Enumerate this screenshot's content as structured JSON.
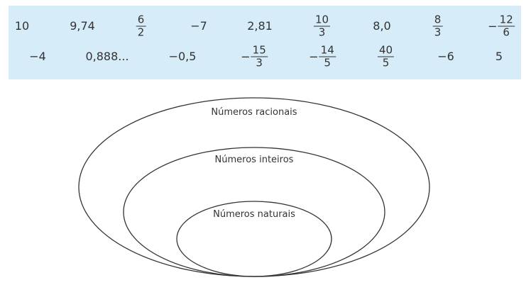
{
  "numbers": {
    "row1": [
      {
        "type": "plain",
        "text": "10"
      },
      {
        "type": "plain",
        "text": "9,74"
      },
      {
        "type": "frac",
        "sign": "",
        "num": "6",
        "den": "2"
      },
      {
        "type": "plain",
        "text": "−7"
      },
      {
        "type": "plain",
        "text": "2,81"
      },
      {
        "type": "frac",
        "sign": "",
        "num": "10",
        "den": "3"
      },
      {
        "type": "plain",
        "text": "8,0"
      },
      {
        "type": "frac",
        "sign": "",
        "num": "8",
        "den": "3"
      },
      {
        "type": "frac",
        "sign": "−",
        "num": "12",
        "den": "6"
      }
    ],
    "row2": [
      {
        "type": "plain",
        "text": "−4"
      },
      {
        "type": "plain",
        "text": "0,888..."
      },
      {
        "type": "plain",
        "text": "−0,5"
      },
      {
        "type": "frac",
        "sign": "−",
        "num": "15",
        "den": "3"
      },
      {
        "type": "frac",
        "sign": "−",
        "num": "14",
        "den": "5"
      },
      {
        "type": "frac",
        "sign": "",
        "num": "40",
        "den": "5"
      },
      {
        "type": "plain",
        "text": "−6"
      },
      {
        "type": "plain",
        "text": "5"
      }
    ]
  },
  "diagram": {
    "sets": {
      "rationals": "Números racionais",
      "integers": "Números inteiros",
      "naturals": "Números naturais"
    }
  },
  "colors": {
    "panel_background": "#d6ecf8",
    "text": "#333333",
    "ellipse_stroke": "#333333"
  }
}
